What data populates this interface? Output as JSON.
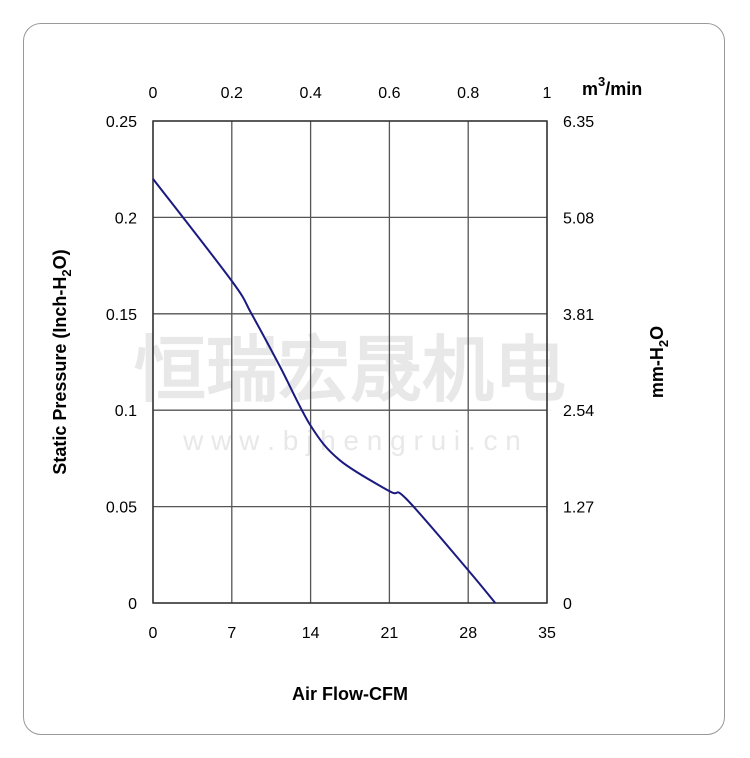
{
  "chart_data": {
    "type": "line",
    "xlabel": "Air Flow-CFM",
    "ylabel": "Static Pressure (Inch-H2O)",
    "ylabel_parts": {
      "main": "Static Pressure (Inch-H",
      "sub": "2",
      "end": "O)"
    },
    "y2label_parts": {
      "main": "mm-H",
      "sub": "2",
      "end": "O"
    },
    "x2label_parts": {
      "main": "m",
      "sup": "3",
      "end": "/min"
    },
    "xlim": [
      0,
      35
    ],
    "ylim": [
      0,
      0.25
    ],
    "x_ticks": [
      "0",
      "7",
      "14",
      "21",
      "28",
      "35"
    ],
    "y_ticks": [
      "0",
      "0.05",
      "0.1",
      "0.15",
      "0.2",
      "0.25"
    ],
    "x2_ticks": [
      "0",
      "0.2",
      "0.4",
      "0.6",
      "0.8",
      "1"
    ],
    "y2_ticks": [
      "0",
      "1.27",
      "2.54",
      "3.81",
      "5.08",
      "6.35"
    ],
    "grid": true,
    "line_color": "#1a1a80",
    "series": [
      {
        "x": [
          0,
          7,
          8.75,
          11.25,
          14,
          16.6,
          21,
          22.5,
          28,
          30.4
        ],
        "y": [
          0.22,
          0.167,
          0.15,
          0.123,
          0.092,
          0.074,
          0.058,
          0.054,
          0.017,
          0
        ]
      }
    ]
  },
  "watermark": {
    "cn": "恒瑞宏晟机电",
    "url": "w w w . b j h e n g r u i . c n"
  }
}
